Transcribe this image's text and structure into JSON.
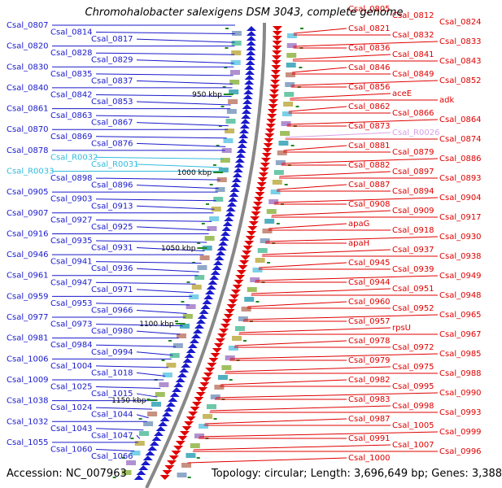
{
  "title": "Chromohalobacter salexigens DSM 3043, complete genome",
  "footer": {
    "accession": "Accession: NC_007963",
    "stats": "Topology: circular; Length: 3,696,649 bp; Genes: 3,388"
  },
  "colors": {
    "forward": "#1a1acc",
    "reverse": "#e00000",
    "rna": "#33bbdd",
    "rna_reverse": "#d8a0e8",
    "backbone": "#888888",
    "tick": "#228822"
  },
  "scale_labels": [
    "950 kbp",
    "1000 kbp",
    "1050 kbp",
    "1100 kbp",
    "1150 kbp"
  ],
  "left_labels": [
    {
      "text": "Csal_0807",
      "kind": "gene"
    },
    {
      "text": "Csal_0814",
      "kind": "gene"
    },
    {
      "text": "Csal_0817",
      "kind": "gene"
    },
    {
      "text": "Csal_0820",
      "kind": "gene"
    },
    {
      "text": "Csal_0828",
      "kind": "gene"
    },
    {
      "text": "Csal_0829",
      "kind": "gene"
    },
    {
      "text": "Csal_0830",
      "kind": "gene"
    },
    {
      "text": "Csal_0835",
      "kind": "gene"
    },
    {
      "text": "Csal_0837",
      "kind": "gene"
    },
    {
      "text": "Csal_0840",
      "kind": "gene"
    },
    {
      "text": "Csal_0842",
      "kind": "gene"
    },
    {
      "text": "Csal_0853",
      "kind": "gene"
    },
    {
      "text": "Csal_0861",
      "kind": "gene"
    },
    {
      "text": "Csal_0863",
      "kind": "gene"
    },
    {
      "text": "Csal_0867",
      "kind": "gene"
    },
    {
      "text": "Csal_0870",
      "kind": "gene"
    },
    {
      "text": "Csal_0869",
      "kind": "gene"
    },
    {
      "text": "Csal_0876",
      "kind": "gene"
    },
    {
      "text": "Csal_0878",
      "kind": "gene"
    },
    {
      "text": "Csal_R0032",
      "kind": "rna"
    },
    {
      "text": "Csal_R0031",
      "kind": "rna"
    },
    {
      "text": "Csal_R0033",
      "kind": "rna"
    },
    {
      "text": "Csal_0898",
      "kind": "gene"
    },
    {
      "text": "Csal_0896",
      "kind": "gene"
    },
    {
      "text": "Csal_0905",
      "kind": "gene"
    },
    {
      "text": "Csal_0903",
      "kind": "gene"
    },
    {
      "text": "Csal_0913",
      "kind": "gene"
    },
    {
      "text": "Csal_0907",
      "kind": "gene"
    },
    {
      "text": "Csal_0927",
      "kind": "gene"
    },
    {
      "text": "Csal_0925",
      "kind": "gene"
    },
    {
      "text": "Csal_0916",
      "kind": "gene"
    },
    {
      "text": "Csal_0935",
      "kind": "gene"
    },
    {
      "text": "Csal_0931",
      "kind": "gene"
    },
    {
      "text": "Csal_0946",
      "kind": "gene"
    },
    {
      "text": "Csal_0941",
      "kind": "gene"
    },
    {
      "text": "Csal_0936",
      "kind": "gene"
    },
    {
      "text": "Csal_0961",
      "kind": "gene"
    },
    {
      "text": "Csal_0947",
      "kind": "gene"
    },
    {
      "text": "Csal_0971",
      "kind": "gene"
    },
    {
      "text": "Csal_0959",
      "kind": "gene"
    },
    {
      "text": "Csal_0953",
      "kind": "gene"
    },
    {
      "text": "Csal_0966",
      "kind": "gene"
    },
    {
      "text": "Csal_0977",
      "kind": "gene"
    },
    {
      "text": "Csal_0973",
      "kind": "gene"
    },
    {
      "text": "Csal_0980",
      "kind": "gene"
    },
    {
      "text": "Csal_0981",
      "kind": "gene"
    },
    {
      "text": "Csal_0984",
      "kind": "gene"
    },
    {
      "text": "Csal_0994",
      "kind": "gene"
    },
    {
      "text": "Csal_1006",
      "kind": "gene"
    },
    {
      "text": "Csal_1004",
      "kind": "gene"
    },
    {
      "text": "Csal_1018",
      "kind": "gene"
    },
    {
      "text": "Csal_1009",
      "kind": "gene"
    },
    {
      "text": "Csal_1025",
      "kind": "gene"
    },
    {
      "text": "Csal_1015",
      "kind": "gene"
    },
    {
      "text": "Csal_1038",
      "kind": "gene"
    },
    {
      "text": "Csal_1024",
      "kind": "gene"
    },
    {
      "text": "Csal_1044",
      "kind": "gene"
    },
    {
      "text": "Csal_1032",
      "kind": "gene"
    },
    {
      "text": "Csal_1043",
      "kind": "gene"
    },
    {
      "text": "Csal_1047",
      "kind": "gene"
    },
    {
      "text": "Csal_1055",
      "kind": "gene"
    },
    {
      "text": "Csal_1060",
      "kind": "gene"
    },
    {
      "text": "Csal_1066",
      "kind": "gene"
    }
  ],
  "right_labels": [
    {
      "text": "Csal_0805",
      "kind": "gene"
    },
    {
      "text": "Csal_0812",
      "kind": "gene"
    },
    {
      "text": "Csal_0824",
      "kind": "gene"
    },
    {
      "text": "Csal_0821",
      "kind": "gene"
    },
    {
      "text": "Csal_0832",
      "kind": "gene"
    },
    {
      "text": "Csal_0833",
      "kind": "gene"
    },
    {
      "text": "Csal_0836",
      "kind": "gene"
    },
    {
      "text": "Csal_0841",
      "kind": "gene"
    },
    {
      "text": "Csal_0843",
      "kind": "gene"
    },
    {
      "text": "Csal_0846",
      "kind": "gene"
    },
    {
      "text": "Csal_0849",
      "kind": "gene"
    },
    {
      "text": "Csal_0852",
      "kind": "gene"
    },
    {
      "text": "Csal_0856",
      "kind": "gene"
    },
    {
      "text": "aceE",
      "kind": "gene"
    },
    {
      "text": "adk",
      "kind": "gene"
    },
    {
      "text": "Csal_0862",
      "kind": "gene"
    },
    {
      "text": "Csal_0866",
      "kind": "gene"
    },
    {
      "text": "Csal_0864",
      "kind": "gene"
    },
    {
      "text": "Csal_0873",
      "kind": "gene"
    },
    {
      "text": "Csal_R0026",
      "kind": "rna"
    },
    {
      "text": "Csal_0874",
      "kind": "gene"
    },
    {
      "text": "Csal_0881",
      "kind": "gene"
    },
    {
      "text": "Csal_0879",
      "kind": "gene"
    },
    {
      "text": "Csal_0886",
      "kind": "gene"
    },
    {
      "text": "Csal_0882",
      "kind": "gene"
    },
    {
      "text": "Csal_0897",
      "kind": "gene"
    },
    {
      "text": "Csal_0893",
      "kind": "gene"
    },
    {
      "text": "Csal_0887",
      "kind": "gene"
    },
    {
      "text": "Csal_0894",
      "kind": "gene"
    },
    {
      "text": "Csal_0904",
      "kind": "gene"
    },
    {
      "text": "Csal_0908",
      "kind": "gene"
    },
    {
      "text": "Csal_0909",
      "kind": "gene"
    },
    {
      "text": "Csal_0917",
      "kind": "gene"
    },
    {
      "text": "apaG",
      "kind": "gene"
    },
    {
      "text": "Csal_0918",
      "kind": "gene"
    },
    {
      "text": "Csal_0930",
      "kind": "gene"
    },
    {
      "text": "apaH",
      "kind": "gene"
    },
    {
      "text": "Csal_0937",
      "kind": "gene"
    },
    {
      "text": "Csal_0938",
      "kind": "gene"
    },
    {
      "text": "Csal_0945",
      "kind": "gene"
    },
    {
      "text": "Csal_0939",
      "kind": "gene"
    },
    {
      "text": "Csal_0949",
      "kind": "gene"
    },
    {
      "text": "Csal_0944",
      "kind": "gene"
    },
    {
      "text": "Csal_0951",
      "kind": "gene"
    },
    {
      "text": "Csal_0948",
      "kind": "gene"
    },
    {
      "text": "Csal_0960",
      "kind": "gene"
    },
    {
      "text": "Csal_0952",
      "kind": "gene"
    },
    {
      "text": "Csal_0965",
      "kind": "gene"
    },
    {
      "text": "Csal_0957",
      "kind": "gene"
    },
    {
      "text": "rpsU",
      "kind": "gene"
    },
    {
      "text": "Csal_0967",
      "kind": "gene"
    },
    {
      "text": "Csal_0978",
      "kind": "gene"
    },
    {
      "text": "Csal_0972",
      "kind": "gene"
    },
    {
      "text": "Csal_0985",
      "kind": "gene"
    },
    {
      "text": "Csal_0979",
      "kind": "gene"
    },
    {
      "text": "Csal_0975",
      "kind": "gene"
    },
    {
      "text": "Csal_0988",
      "kind": "gene"
    },
    {
      "text": "Csal_0982",
      "kind": "gene"
    },
    {
      "text": "Csal_0995",
      "kind": "gene"
    },
    {
      "text": "Csal_0990",
      "kind": "gene"
    },
    {
      "text": "Csal_0983",
      "kind": "gene"
    },
    {
      "text": "Csal_0998",
      "kind": "gene"
    },
    {
      "text": "Csal_0993",
      "kind": "gene"
    },
    {
      "text": "Csal_0987",
      "kind": "gene"
    },
    {
      "text": "Csal_1005",
      "kind": "gene"
    },
    {
      "text": "Csal_0999",
      "kind": "gene"
    },
    {
      "text": "Csal_0991",
      "kind": "gene"
    },
    {
      "text": "Csal_1007",
      "kind": "gene"
    },
    {
      "text": "Csal_0996",
      "kind": "gene"
    },
    {
      "text": "Csal_1000",
      "kind": "gene"
    }
  ]
}
